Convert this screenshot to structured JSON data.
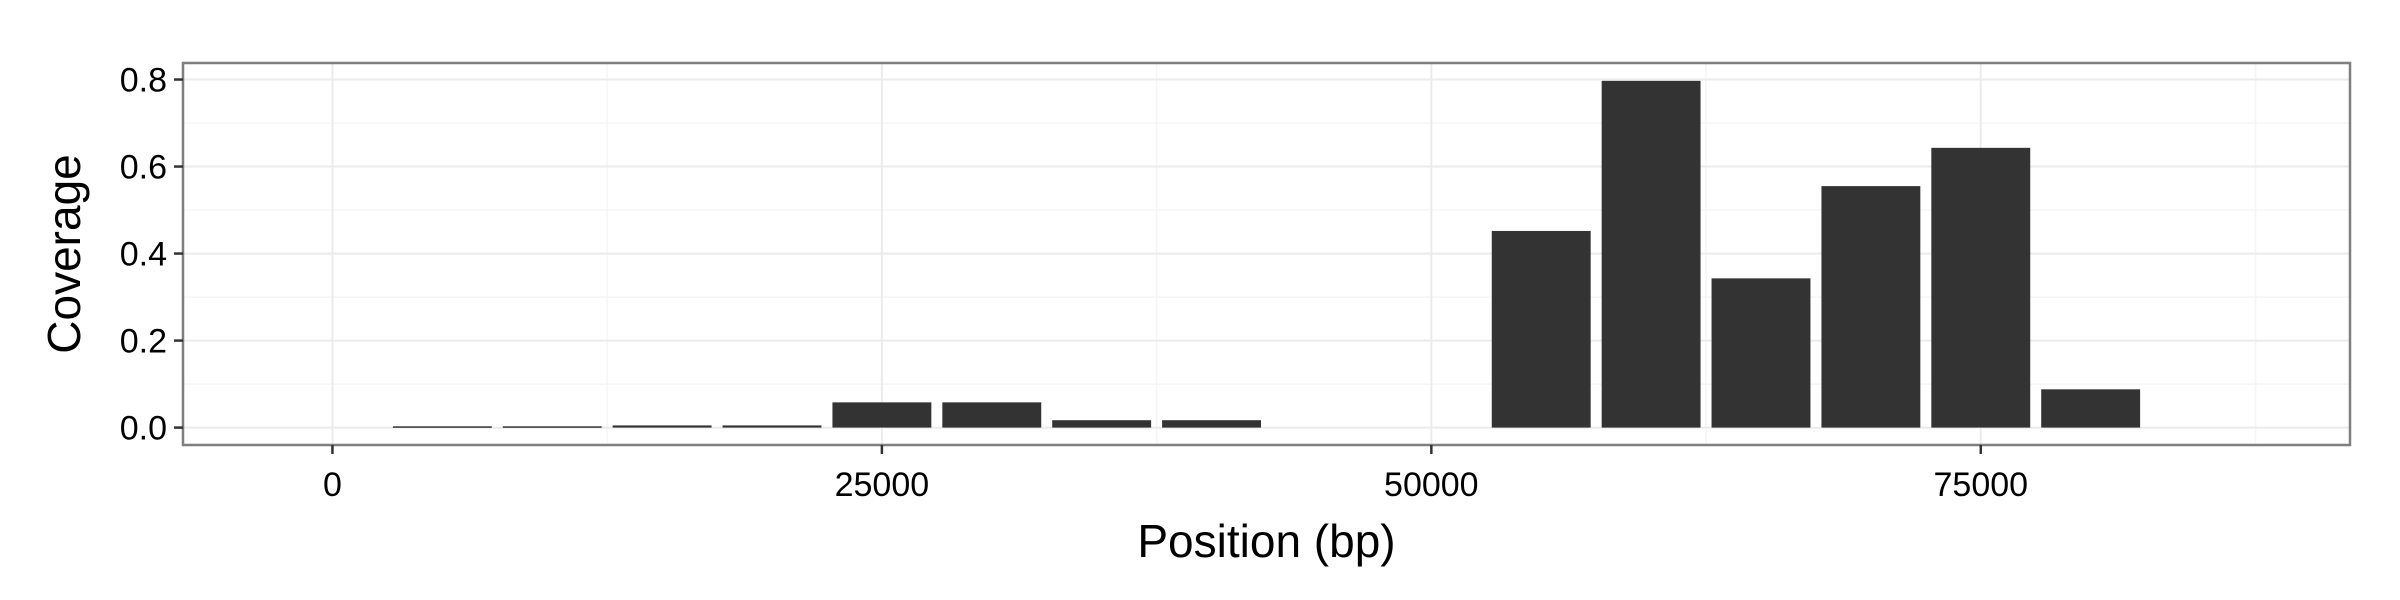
{
  "chart_data": {
    "type": "bar",
    "title": "",
    "xlabel": "Position (bp)",
    "ylabel": "Coverage",
    "x": [
      5000,
      10000,
      15000,
      20000,
      25000,
      30000,
      35000,
      40000,
      55000,
      60000,
      65000,
      70000,
      75000,
      80000
    ],
    "values": [
      0.003,
      0.003,
      0.005,
      0.005,
      0.058,
      0.058,
      0.017,
      0.017,
      0.452,
      0.797,
      0.343,
      0.555,
      0.643,
      0.088
    ],
    "bar_width": 4500,
    "xlim": [
      -6800,
      91800
    ],
    "ylim": [
      -0.04,
      0.838
    ],
    "x_ticks": [
      0,
      25000,
      50000,
      75000
    ],
    "x_tick_labels": [
      "0",
      "25000",
      "50000",
      "75000"
    ],
    "y_ticks": [
      0.0,
      0.2,
      0.4,
      0.6,
      0.8
    ],
    "y_tick_labels": [
      "0.0",
      "0.2",
      "0.4",
      "0.6",
      "0.8"
    ],
    "grid": true,
    "colors": {
      "bar": "#333333",
      "panel_border": "#7f7f7f",
      "grid_major": "#ebebeb",
      "grid_minor": "#f5f5f5",
      "background": "#ffffff"
    }
  }
}
